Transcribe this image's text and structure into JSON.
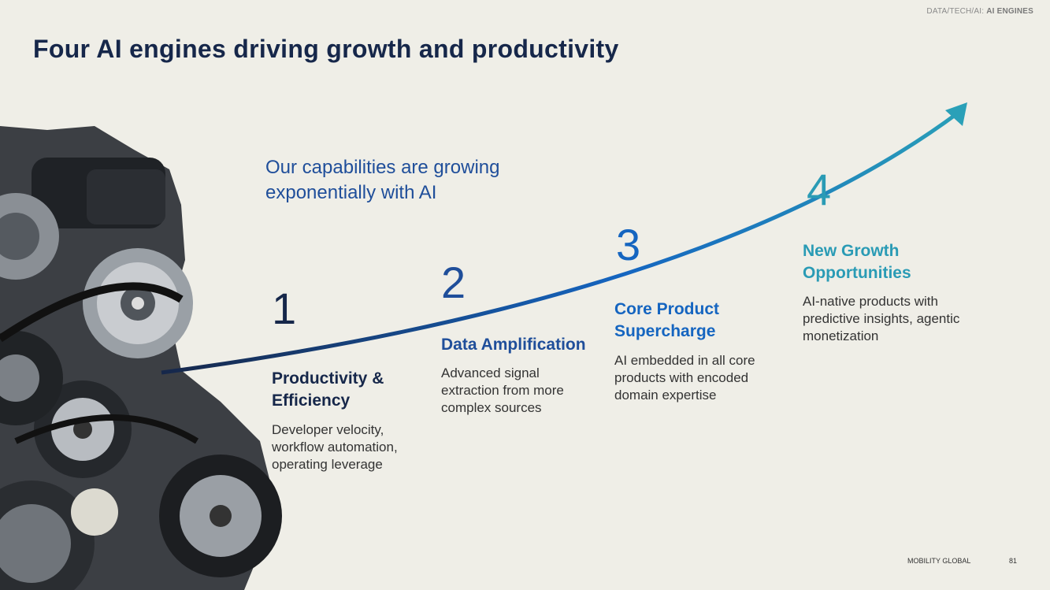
{
  "header": {
    "section": "DATA/TECH/AI:",
    "topic": "AI ENGINES",
    "title": "Four AI engines driving growth and productivity"
  },
  "subtitle": "Our capabilities are growing exponentially with AI",
  "engines": [
    {
      "number": 1,
      "title": "Productivity & Efficiency",
      "description": "Developer velocity, workflow automation, operating leverage"
    },
    {
      "number": 2,
      "title": "Data Amplification",
      "description": "Advanced signal extraction from more complex sources"
    },
    {
      "number": 3,
      "title": "Core Product Supercharge",
      "description": "AI embedded in all core products with encoded domain expertise"
    },
    {
      "number": 4,
      "title": "New Growth Opportunities",
      "description": "AI-native products with predictive insights, agentic monetization"
    }
  ],
  "footer": {
    "brand": "MOBILITY GLOBAL",
    "page": 81
  }
}
